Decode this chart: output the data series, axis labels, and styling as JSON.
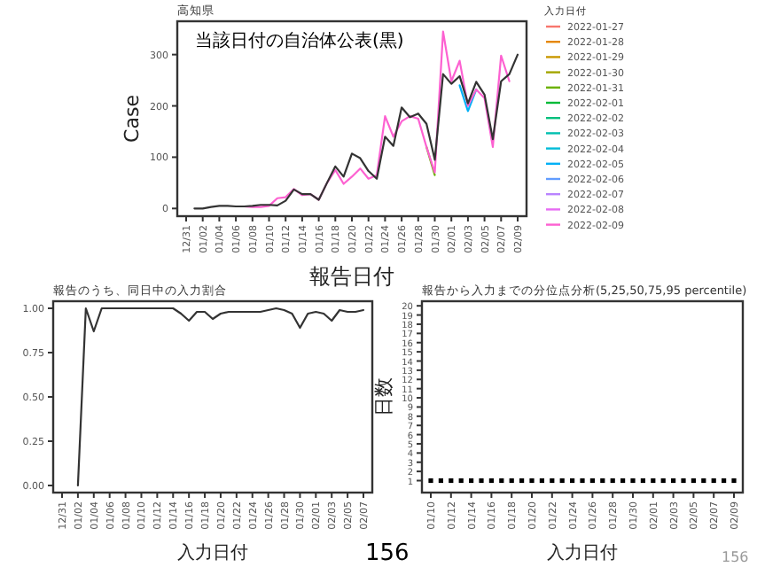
{
  "chart_data": [
    {
      "type": "line",
      "title": "高知県",
      "xlabel": "報告日付",
      "ylabel": "Case",
      "legend_title": "入力日付",
      "legend": "right",
      "grid": false,
      "categories": [
        "12/31",
        null,
        "01/02",
        null,
        "01/04",
        null,
        "01/06",
        null,
        "01/08",
        null,
        "01/10",
        null,
        "01/12",
        null,
        "01/14",
        null,
        "01/16",
        null,
        "01/18",
        null,
        "01/20",
        null,
        "01/22",
        null,
        "01/24",
        null,
        "01/26",
        null,
        "01/28",
        null,
        "01/30",
        null,
        "02/01",
        null,
        "02/03",
        null,
        "02/05",
        null,
        "02/07",
        null,
        "02/09"
      ],
      "ylim": [
        -15,
        365
      ],
      "yticks": [
        0,
        100,
        200,
        300
      ],
      "annotations": [
        "当該日付の自治体公表(黒)"
      ],
      "series": [
        {
          "name": "2022-01-27",
          "color": "#f8766d",
          "values": [
            null,
            null,
            null,
            null,
            null,
            null,
            null,
            null,
            null,
            null,
            null,
            null,
            null,
            null,
            null,
            null,
            null,
            null,
            null,
            null,
            null,
            null,
            null,
            null,
            null,
            null,
            null,
            null,
            null,
            null,
            null,
            null,
            null,
            null,
            null,
            null,
            null,
            null,
            null,
            null,
            null
          ]
        },
        {
          "name": "2022-01-28",
          "color": "#e58700",
          "values": [
            null,
            null,
            null,
            null,
            null,
            null,
            null,
            null,
            null,
            null,
            null,
            null,
            null,
            null,
            null,
            null,
            null,
            null,
            null,
            null,
            null,
            null,
            null,
            null,
            null,
            null,
            null,
            null,
            null,
            null,
            null,
            null,
            null,
            null,
            null,
            null,
            null,
            null,
            null,
            null,
            null
          ]
        },
        {
          "name": "2022-01-29",
          "color": "#c99800",
          "values": [
            null,
            null,
            null,
            null,
            null,
            null,
            null,
            null,
            null,
            null,
            null,
            null,
            null,
            null,
            null,
            null,
            null,
            null,
            null,
            null,
            null,
            null,
            null,
            null,
            null,
            null,
            null,
            null,
            null,
            null,
            null,
            null,
            null,
            null,
            null,
            null,
            null,
            null,
            null,
            null,
            null
          ]
        },
        {
          "name": "2022-01-30",
          "color": "#a3a500",
          "values": [
            null,
            null,
            null,
            null,
            null,
            null,
            null,
            null,
            null,
            null,
            null,
            null,
            null,
            null,
            null,
            null,
            null,
            null,
            null,
            null,
            null,
            null,
            null,
            null,
            null,
            null,
            null,
            null,
            null,
            null,
            null,
            null,
            null,
            null,
            null,
            null,
            null,
            null,
            null,
            null,
            null
          ]
        },
        {
          "name": "2022-01-31",
          "color": "#6bb100",
          "values": [
            null,
            null,
            null,
            null,
            null,
            null,
            null,
            null,
            null,
            null,
            null,
            null,
            null,
            null,
            null,
            null,
            null,
            null,
            null,
            null,
            null,
            null,
            null,
            null,
            null,
            null,
            null,
            null,
            null,
            120,
            65,
            null,
            null,
            null,
            null,
            null,
            null,
            null,
            null,
            null,
            null
          ]
        },
        {
          "name": "2022-02-01",
          "color": "#00ba38",
          "values": [
            null,
            null,
            null,
            null,
            null,
            null,
            null,
            null,
            null,
            null,
            null,
            null,
            null,
            null,
            null,
            null,
            null,
            null,
            null,
            null,
            null,
            null,
            null,
            null,
            null,
            null,
            null,
            null,
            null,
            null,
            null,
            null,
            null,
            null,
            null,
            null,
            null,
            null,
            null,
            null,
            null
          ]
        },
        {
          "name": "2022-02-02",
          "color": "#00bf7d",
          "values": [
            null,
            null,
            null,
            null,
            null,
            null,
            null,
            null,
            null,
            null,
            null,
            null,
            null,
            null,
            null,
            null,
            null,
            null,
            null,
            null,
            null,
            null,
            null,
            null,
            null,
            null,
            null,
            null,
            null,
            null,
            null,
            null,
            null,
            null,
            null,
            null,
            null,
            null,
            null,
            null,
            null
          ]
        },
        {
          "name": "2022-02-03",
          "color": "#00c0af",
          "values": [
            null,
            null,
            null,
            null,
            null,
            null,
            null,
            null,
            null,
            null,
            null,
            null,
            null,
            null,
            null,
            null,
            null,
            null,
            null,
            null,
            null,
            null,
            null,
            null,
            null,
            null,
            null,
            null,
            null,
            null,
            null,
            null,
            null,
            null,
            null,
            null,
            null,
            null,
            null,
            null,
            null
          ]
        },
        {
          "name": "2022-02-04",
          "color": "#00bcd8",
          "values": [
            null,
            null,
            null,
            null,
            null,
            null,
            null,
            null,
            null,
            null,
            null,
            null,
            null,
            null,
            null,
            null,
            null,
            null,
            null,
            null,
            null,
            null,
            null,
            null,
            null,
            null,
            null,
            null,
            null,
            null,
            null,
            null,
            null,
            null,
            null,
            null,
            null,
            null,
            null,
            null,
            null
          ]
        },
        {
          "name": "2022-02-05",
          "color": "#00b0f6",
          "values": [
            null,
            null,
            null,
            null,
            null,
            null,
            null,
            null,
            null,
            null,
            null,
            null,
            null,
            null,
            null,
            null,
            null,
            null,
            null,
            null,
            null,
            null,
            null,
            null,
            null,
            null,
            null,
            null,
            null,
            null,
            null,
            null,
            null,
            240,
            190,
            232,
            null,
            null,
            null,
            null,
            null
          ]
        },
        {
          "name": "2022-02-06",
          "color": "#619cff",
          "values": [
            null,
            null,
            null,
            null,
            null,
            null,
            null,
            null,
            null,
            null,
            null,
            null,
            null,
            null,
            null,
            null,
            null,
            null,
            null,
            null,
            null,
            null,
            null,
            null,
            null,
            null,
            null,
            null,
            null,
            null,
            null,
            null,
            null,
            null,
            null,
            null,
            null,
            null,
            null,
            null,
            null
          ]
        },
        {
          "name": "2022-02-07",
          "color": "#b983ff",
          "values": [
            null,
            null,
            null,
            null,
            null,
            null,
            null,
            null,
            null,
            null,
            null,
            null,
            null,
            null,
            null,
            null,
            null,
            null,
            null,
            null,
            null,
            null,
            null,
            null,
            null,
            null,
            null,
            null,
            null,
            null,
            null,
            null,
            null,
            null,
            null,
            null,
            null,
            null,
            null,
            null,
            null
          ]
        },
        {
          "name": "2022-02-08",
          "color": "#e76bf3",
          "values": [
            null,
            null,
            null,
            null,
            null,
            null,
            null,
            null,
            null,
            null,
            null,
            null,
            null,
            null,
            null,
            null,
            null,
            null,
            null,
            null,
            null,
            null,
            null,
            null,
            null,
            null,
            null,
            null,
            null,
            null,
            null,
            null,
            null,
            null,
            null,
            null,
            null,
            null,
            null,
            null,
            null
          ]
        },
        {
          "name": "2022-02-09",
          "color": "#fd61d1",
          "values": [
            null,
            null,
            null,
            null,
            null,
            null,
            4,
            4,
            3,
            3,
            5,
            20,
            22,
            38,
            26,
            28,
            17,
            50,
            75,
            48,
            62,
            78,
            58,
            65,
            180,
            140,
            170,
            180,
            175,
            120,
            70,
            345,
            248,
            288,
            200,
            232,
            215,
            120,
            298,
            248,
            null
          ]
        },
        {
          "color": "#333333",
          "values": [
            null,
            0,
            0,
            3,
            5,
            5,
            4,
            4,
            5,
            7,
            7,
            6,
            15,
            37,
            28,
            28,
            17,
            50,
            82,
            62,
            107,
            98,
            73,
            58,
            140,
            122,
            197,
            178,
            185,
            165,
            95,
            262,
            243,
            258,
            205,
            247,
            222,
            135,
            248,
            262,
            300
          ]
        }
      ]
    },
    {
      "type": "line",
      "title": "報告のうち、同日中の入力割合",
      "xlabel": "入力日付",
      "grid": false,
      "categories": [
        "12/31",
        null,
        "01/02",
        null,
        "01/04",
        null,
        "01/06",
        null,
        "01/08",
        null,
        "01/10",
        null,
        "01/12",
        null,
        "01/14",
        null,
        "01/16",
        null,
        "01/18",
        null,
        "01/20",
        null,
        "01/22",
        null,
        "01/24",
        null,
        "01/26",
        null,
        "01/28",
        null,
        "01/30",
        null,
        "02/01",
        null,
        "02/03",
        null,
        "02/05",
        null,
        "02/07"
      ],
      "ylim": [
        -0.04,
        1.04
      ],
      "yticks": [
        {
          "value": 0,
          "label": "0.00"
        },
        {
          "value": 0.25,
          "label": "0.25"
        },
        {
          "value": 0.5,
          "label": "0.50"
        },
        {
          "value": 0.75,
          "label": "0.75"
        },
        {
          "value": 1,
          "label": "1.00"
        }
      ],
      "annotations": [
        "156"
      ],
      "series": [
        {
          "color": "#333333",
          "values": [
            null,
            null,
            0,
            1,
            0.87,
            1,
            1,
            1,
            1,
            1,
            1,
            1,
            1,
            1,
            1,
            0.97,
            0.93,
            0.98,
            0.98,
            0.94,
            0.97,
            0.98,
            0.98,
            0.98,
            0.98,
            0.98,
            0.99,
            1,
            0.99,
            0.97,
            0.89,
            0.97,
            0.98,
            0.97,
            0.93,
            0.99,
            0.98,
            0.98,
            0.99
          ]
        }
      ]
    },
    {
      "type": "scatter",
      "title": "報告から入力までの分位点分析(5,25,50,75,95 percentile)",
      "xlabel": "入力日付",
      "ylabel": "日数",
      "grid": false,
      "marker": "square",
      "categories": [
        "01/10",
        null,
        "01/12",
        null,
        "01/14",
        null,
        "01/16",
        null,
        "01/18",
        null,
        "01/20",
        null,
        "01/22",
        null,
        "01/24",
        null,
        "01/26",
        null,
        "01/28",
        null,
        "01/30",
        null,
        "02/01",
        null,
        "02/03",
        null,
        "02/05",
        null,
        "02/07",
        null,
        "02/09"
      ],
      "ylim": [
        -0.3,
        20.5
      ],
      "yticks": [
        1,
        2,
        3,
        4,
        5,
        6,
        7,
        8,
        9,
        10,
        11,
        12,
        13,
        14,
        15,
        16,
        17,
        18,
        19,
        20
      ],
      "annotations": [
        "156"
      ],
      "series": [
        {
          "color": "#000000",
          "values": [
            1,
            1,
            1,
            1,
            1,
            1,
            1,
            1,
            1,
            1,
            1,
            1,
            1,
            1,
            1,
            1,
            1,
            1,
            1,
            1,
            1,
            1,
            1,
            1,
            1,
            1,
            1,
            1,
            1,
            1,
            1
          ]
        }
      ]
    }
  ]
}
